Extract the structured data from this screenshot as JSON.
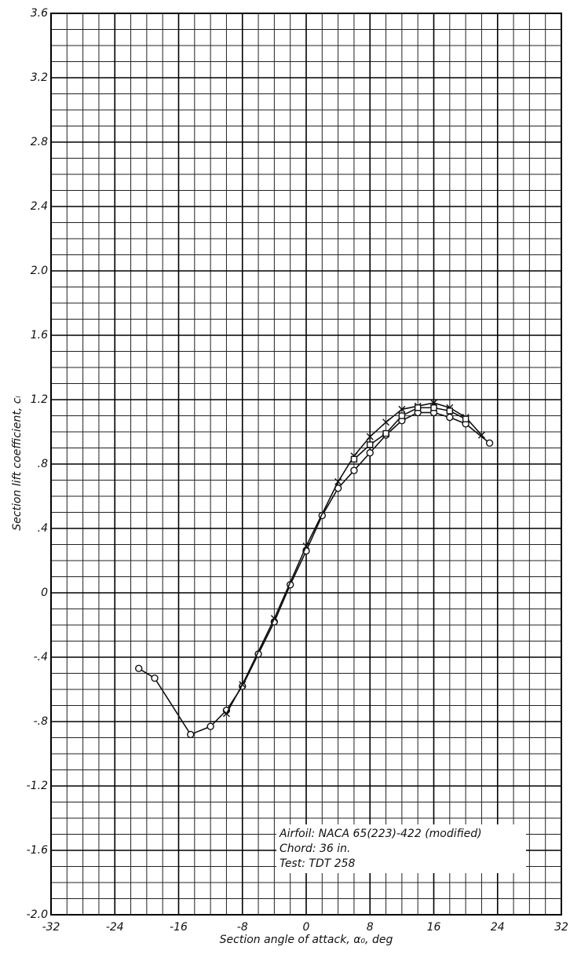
{
  "chart_data": {
    "type": "line",
    "xlabel": "Section angle of attack, α₀, deg",
    "ylabel": "Section lift coefficient, cₗ",
    "annotations": [
      "Airfoil: NACA 65(223)-422 (modified)",
      "Chord: 36 in.",
      "Test: TDT 258"
    ],
    "xlim": [
      -32,
      32
    ],
    "xticks": [
      -32,
      -24,
      -16,
      -8,
      0,
      8,
      16,
      24,
      32
    ],
    "ylim": [
      -2.0,
      3.6
    ],
    "yticks": [
      {
        "value": -2.0,
        "label": "-2.0"
      },
      {
        "value": -1.6,
        "label": "-1.6"
      },
      {
        "value": -1.2,
        "label": "-1.2"
      },
      {
        "value": -0.8,
        "label": "-.8"
      },
      {
        "value": -0.4,
        "label": "-.4"
      },
      0,
      {
        "value": 0.4,
        "label": ".4"
      },
      {
        "value": 0.8,
        "label": ".8"
      },
      1.2,
      1.6,
      {
        "value": 2.0,
        "label": "2.0"
      },
      2.4,
      2.8,
      3.2,
      3.6
    ],
    "grid": true,
    "minor_grid": {
      "x": 2,
      "y": 0.1
    },
    "series": [
      {
        "marker": "circle",
        "color": "#111111",
        "x": [
          -21,
          -19,
          -14.5,
          -12,
          -10,
          -8,
          -6,
          -4,
          -2,
          0,
          2,
          4,
          6,
          8,
          10,
          12,
          14,
          16,
          18,
          20,
          23
        ],
        "values": [
          -0.47,
          -0.53,
          -0.88,
          -0.83,
          -0.73,
          -0.58,
          -0.38,
          -0.18,
          0.05,
          0.26,
          0.48,
          0.65,
          0.76,
          0.87,
          0.98,
          1.07,
          1.12,
          1.12,
          1.09,
          1.05,
          0.93
        ]
      },
      {
        "marker": "cross",
        "color": "#111111",
        "x": [
          -10,
          -8,
          -4,
          0,
          4,
          6,
          8,
          10,
          12,
          14,
          16,
          18,
          20,
          22
        ],
        "values": [
          -0.75,
          -0.57,
          -0.16,
          0.29,
          0.69,
          0.85,
          0.97,
          1.06,
          1.14,
          1.16,
          1.18,
          1.15,
          1.09,
          0.98
        ]
      },
      {
        "marker": "square",
        "color": "#111111",
        "x": [
          6,
          8,
          10,
          12,
          14,
          16,
          18,
          20
        ],
        "values": [
          0.83,
          0.92,
          0.99,
          1.1,
          1.15,
          1.15,
          1.13,
          1.08
        ]
      }
    ]
  }
}
